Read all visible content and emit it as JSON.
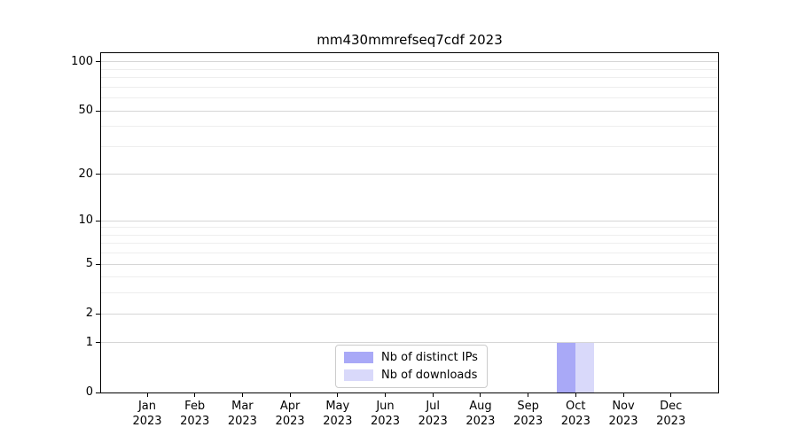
{
  "chart_data": {
    "type": "bar",
    "title": "mm430mmrefseq7cdf 2023",
    "categories": [
      "Jan 2023",
      "Feb 2023",
      "Mar 2023",
      "Apr 2023",
      "May 2023",
      "Jun 2023",
      "Jul 2023",
      "Aug 2023",
      "Sep 2023",
      "Oct 2023",
      "Nov 2023",
      "Dec 2023"
    ],
    "series": [
      {
        "name": "Nb of distinct IPs",
        "color": "#a9a9f7",
        "values": [
          0,
          0,
          0,
          0,
          0,
          0,
          0,
          0,
          0,
          1,
          0,
          0
        ]
      },
      {
        "name": "Nb of downloads",
        "color": "#d9d9fa",
        "values": [
          0,
          0,
          0,
          0,
          0,
          0,
          0,
          0,
          0,
          1,
          0,
          0
        ]
      }
    ],
    "xlabel": "",
    "ylabel": "",
    "yticks": [
      0,
      1,
      2,
      5,
      10,
      20,
      50,
      100
    ],
    "minor_yticks": [
      3,
      4,
      6,
      7,
      8,
      9,
      30,
      40,
      60,
      70,
      80,
      90
    ],
    "scale": "log1p",
    "ylim": [
      0,
      113.3
    ],
    "grid": true,
    "legend_position": "bottom-center",
    "colors": {
      "axis": "#000000",
      "grid_major": "#d6d6d6",
      "grid_minor": "#eeeeee",
      "legend_border": "#cccccc",
      "text": "#000000"
    }
  }
}
